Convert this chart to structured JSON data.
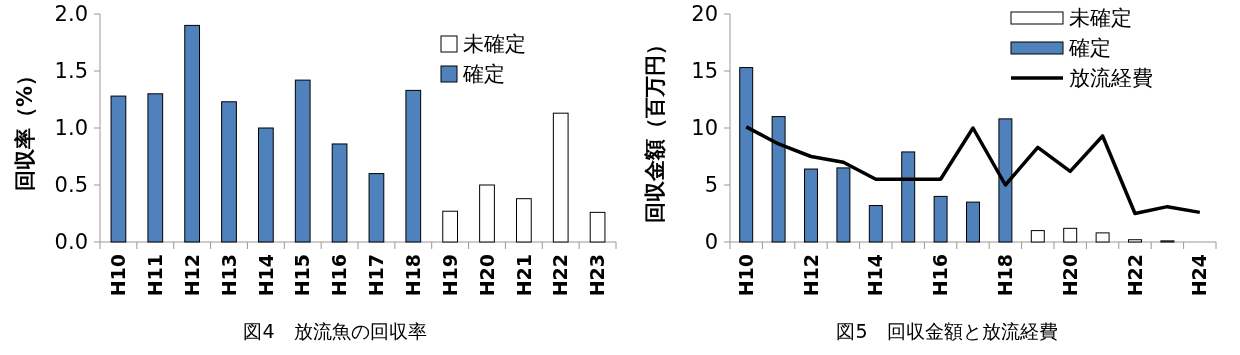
{
  "chart_data": [
    {
      "type": "bar",
      "title": "図4　放流魚の回収率",
      "ylabel": "回収率（%）",
      "categories": [
        "H10",
        "H11",
        "H12",
        "H13",
        "H14",
        "H15",
        "H16",
        "H17",
        "H18",
        "H19",
        "H20",
        "H21",
        "H22",
        "H23"
      ],
      "series": [
        {
          "name": "未確定",
          "color": "#ffffff",
          "values": [
            null,
            null,
            null,
            null,
            null,
            null,
            null,
            null,
            null,
            0.27,
            0.5,
            0.38,
            1.13,
            0.26
          ]
        },
        {
          "name": "確定",
          "color": "#4f81bd",
          "values": [
            1.28,
            1.3,
            1.9,
            1.23,
            1.0,
            1.42,
            0.86,
            0.6,
            1.33,
            null,
            null,
            null,
            null,
            null
          ]
        }
      ],
      "ylim": [
        0,
        2
      ],
      "yticks": [
        {
          "value": 0,
          "label": "0.0"
        },
        {
          "value": 0.5,
          "label": "0.5"
        },
        {
          "value": 1,
          "label": "1.0"
        },
        {
          "value": 1.5,
          "label": "1.5"
        },
        {
          "value": 2,
          "label": "2.0"
        }
      ],
      "legend": "top right"
    },
    {
      "type": "bar",
      "title": "図5　回収金額と放流経費",
      "ylabel": "回収金額（百万円）",
      "categories": [
        "H10",
        null,
        "H12",
        null,
        "H14",
        null,
        "H16",
        null,
        "H18",
        null,
        "H20",
        null,
        "H22",
        null,
        "H24"
      ],
      "series": [
        {
          "name": "未確定",
          "color": "#ffffff",
          "values": [
            null,
            null,
            null,
            null,
            null,
            null,
            null,
            null,
            null,
            1.0,
            1.2,
            0.8,
            0.2,
            0.1,
            null
          ]
        },
        {
          "name": "確定",
          "color": "#4f81bd",
          "values": [
            15.3,
            11.0,
            6.4,
            6.5,
            3.2,
            7.9,
            4.0,
            3.5,
            10.8,
            null,
            null,
            null,
            null,
            null,
            null
          ]
        },
        {
          "name": "放流経費",
          "type": "line",
          "color": "#000000",
          "values": [
            10.1,
            8.6,
            7.5,
            7.0,
            5.5,
            5.5,
            5.5,
            10.0,
            5.0,
            8.3,
            6.2,
            9.3,
            2.5,
            3.1,
            2.6
          ]
        }
      ],
      "ylim": [
        0,
        20
      ],
      "yticks": [
        0,
        5,
        10,
        15,
        20
      ],
      "legend": "top right",
      "marker": "none"
    }
  ]
}
